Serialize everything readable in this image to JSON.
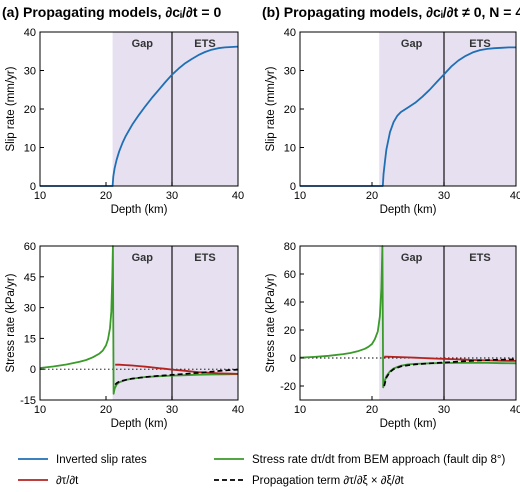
{
  "colors": {
    "slip": "#1f6fb5",
    "bem": "#3a9a2a",
    "dtau": "#b5231f",
    "prop": "#000000",
    "shade": "#e6e0f0",
    "axis": "#000000"
  },
  "panels": [
    {
      "id": "a",
      "title": "(a) Propagating models, ∂cᵢ/∂t = 0",
      "region_labels": [
        "Gap",
        "ETS"
      ],
      "shade_from": 21,
      "divider_at": 30
    },
    {
      "id": "b",
      "title": "(b) Propagating models, ∂cᵢ/∂t ≠ 0, N = 4",
      "region_labels": [
        "Gap",
        "ETS"
      ],
      "shade_from": 21,
      "divider_at": 30
    }
  ],
  "legend": {
    "items": [
      {
        "key": "slip",
        "label": "Inverted slip rates",
        "style": "solid"
      },
      {
        "key": "bem",
        "label": "Stress rate dτ/dt from BEM approach (fault dip 8°)",
        "style": "solid"
      },
      {
        "key": "dtau",
        "label": "∂τ/∂t",
        "style": "solid"
      },
      {
        "key": "prop",
        "label": "Propagation term ∂τ/∂ξ × ∂ξ/∂t",
        "style": "dashed"
      }
    ]
  },
  "chart_data": [
    {
      "type": "line",
      "panel": "a-top",
      "xlabel": "Depth (km)",
      "ylabel": "Slip rate (mm/yr)",
      "xlim": [
        10,
        40
      ],
      "ylim": [
        0,
        40
      ],
      "xticks": [
        10,
        20,
        30,
        40
      ],
      "yticks": [
        0,
        10,
        20,
        30,
        40
      ],
      "series": [
        {
          "key": "slip",
          "x": [
            10,
            21,
            21.1,
            21.3,
            21.6,
            22,
            22.5,
            23,
            24,
            25,
            26,
            27,
            28,
            29,
            30,
            31,
            32,
            33,
            34,
            35,
            36,
            37,
            38,
            39,
            40
          ],
          "y": [
            0,
            0,
            2.5,
            4.6,
            6.8,
            9.0,
            11.2,
            13.0,
            16.0,
            18.5,
            20.8,
            23.0,
            25.0,
            27.0,
            28.9,
            30.5,
            31.9,
            33.0,
            34.0,
            34.8,
            35.4,
            35.8,
            36.0,
            36.1,
            36.2
          ]
        }
      ]
    },
    {
      "type": "line",
      "panel": "a-bottom",
      "xlabel": "Depth (km)",
      "ylabel": "Stress rate (kPa/yr)",
      "xlim": [
        10,
        40
      ],
      "ylim": [
        -15,
        60
      ],
      "xticks": [
        10,
        20,
        30,
        40
      ],
      "yticks": [
        -15,
        0,
        15,
        30,
        45,
        60
      ],
      "zero_line": true,
      "series": [
        {
          "key": "bem",
          "x": [
            10,
            12,
            14,
            16,
            17,
            18,
            19,
            19.5,
            20,
            20.3,
            20.6,
            20.8,
            20.95,
            21.05,
            21.15,
            21.3,
            21.6,
            22,
            23,
            24,
            26,
            28,
            30,
            32,
            34,
            36,
            38,
            40
          ],
          "y": [
            0.6,
            1.3,
            2.3,
            3.6,
            4.5,
            5.8,
            7.6,
            9.0,
            11.6,
            14.5,
            20.0,
            28.0,
            45.0,
            60.0,
            -12.0,
            -9.5,
            -7.5,
            -6.4,
            -5.2,
            -4.6,
            -3.8,
            -3.4,
            -3.1,
            -2.9,
            -2.7,
            -2.6,
            -2.5,
            -2.4
          ]
        },
        {
          "key": "dtau",
          "x": [
            21.4,
            22,
            23,
            24,
            25,
            26,
            27,
            28,
            29,
            30,
            31,
            32,
            33,
            34,
            35,
            36,
            37,
            38,
            39,
            40
          ],
          "y": [
            2.2,
            2.2,
            2.0,
            1.8,
            1.5,
            1.2,
            0.9,
            0.5,
            0.2,
            -0.2,
            -0.5,
            -0.8,
            -1.1,
            -1.4,
            -1.6,
            -1.8,
            -2.0,
            -2.1,
            -2.2,
            -2.3
          ]
        },
        {
          "key": "prop",
          "x": [
            21.4,
            21.6,
            22,
            23,
            24,
            25,
            26,
            27,
            28,
            29,
            30,
            31,
            32,
            33,
            34,
            35,
            36,
            37,
            38,
            39,
            40
          ],
          "y": [
            -7.5,
            -6.8,
            -6.0,
            -5.2,
            -4.6,
            -4.2,
            -3.8,
            -3.5,
            -3.2,
            -3.0,
            -2.8,
            -2.5,
            -2.3,
            -2.0,
            -1.8,
            -1.5,
            -1.2,
            -0.9,
            -0.6,
            -0.4,
            -0.2
          ]
        }
      ]
    },
    {
      "type": "line",
      "panel": "b-top",
      "xlabel": "Depth (km)",
      "ylabel": "Slip rate (mm/yr)",
      "xlim": [
        10,
        40
      ],
      "ylim": [
        0,
        40
      ],
      "xticks": [
        10,
        20,
        30,
        40
      ],
      "yticks": [
        0,
        10,
        20,
        30,
        40
      ],
      "series": [
        {
          "key": "slip",
          "x": [
            10,
            21.5,
            21.6,
            21.8,
            22,
            22.5,
            23,
            23.5,
            24,
            25,
            26,
            27,
            28,
            29,
            30,
            31,
            32,
            33,
            34,
            35,
            36,
            37,
            38,
            39,
            40
          ],
          "y": [
            0,
            0,
            3.0,
            6.5,
            9.5,
            14.0,
            16.6,
            18.2,
            19.2,
            20.4,
            21.6,
            23.2,
            25.0,
            27.0,
            29.0,
            31.0,
            32.6,
            33.8,
            34.7,
            35.3,
            35.6,
            35.8,
            35.9,
            36.0,
            36.0
          ]
        }
      ]
    },
    {
      "type": "line",
      "panel": "b-bottom",
      "xlabel": "Depth (km)",
      "ylabel": "Stress rate (kPa/yr)",
      "xlim": [
        10,
        40
      ],
      "ylim": [
        -30,
        80
      ],
      "xticks": [
        10,
        20,
        30,
        40
      ],
      "yticks": [
        -20,
        0,
        20,
        40,
        60,
        80
      ],
      "zero_line": true,
      "series": [
        {
          "key": "bem",
          "x": [
            10,
            12,
            14,
            16,
            17,
            18,
            19,
            19.5,
            20,
            20.4,
            20.8,
            21.1,
            21.3,
            21.45,
            21.55,
            21.7,
            22,
            22.5,
            23,
            24,
            25,
            26,
            28,
            30,
            32,
            34,
            36,
            38,
            40
          ],
          "y": [
            0.2,
            0.8,
            1.6,
            2.8,
            3.6,
            4.8,
            6.6,
            8.0,
            10.0,
            13.5,
            19.0,
            30.0,
            50.0,
            80.0,
            -21.0,
            -17.5,
            -13.0,
            -9.5,
            -7.5,
            -5.5,
            -4.6,
            -4.2,
            -3.8,
            -3.6,
            -3.5,
            -3.4,
            -3.5,
            -3.7,
            -3.8
          ]
        },
        {
          "key": "dtau",
          "x": [
            21.7,
            22,
            23,
            24,
            25,
            26,
            27,
            28,
            29,
            30,
            31,
            32,
            33,
            34,
            35,
            36,
            37,
            38,
            39,
            40
          ],
          "y": [
            1.0,
            0.9,
            0.8,
            0.6,
            0.4,
            0.2,
            0.0,
            -0.2,
            -0.4,
            -0.6,
            -0.8,
            -1.0,
            -1.2,
            -1.4,
            -1.6,
            -1.7,
            -1.8,
            -1.9,
            -2.0,
            -2.1
          ]
        },
        {
          "key": "prop",
          "x": [
            21.7,
            22,
            22.5,
            23,
            24,
            25,
            26,
            27,
            28,
            29,
            30,
            31,
            32,
            33,
            34,
            35,
            36,
            37,
            38,
            39,
            40
          ],
          "y": [
            -20.0,
            -14.0,
            -10.0,
            -8.0,
            -6.0,
            -5.2,
            -4.6,
            -4.2,
            -3.8,
            -3.5,
            -3.2,
            -2.9,
            -2.6,
            -2.3,
            -2.0,
            -1.7,
            -1.5,
            -1.3,
            -1.2,
            -1.1,
            -1.0
          ]
        }
      ]
    }
  ]
}
